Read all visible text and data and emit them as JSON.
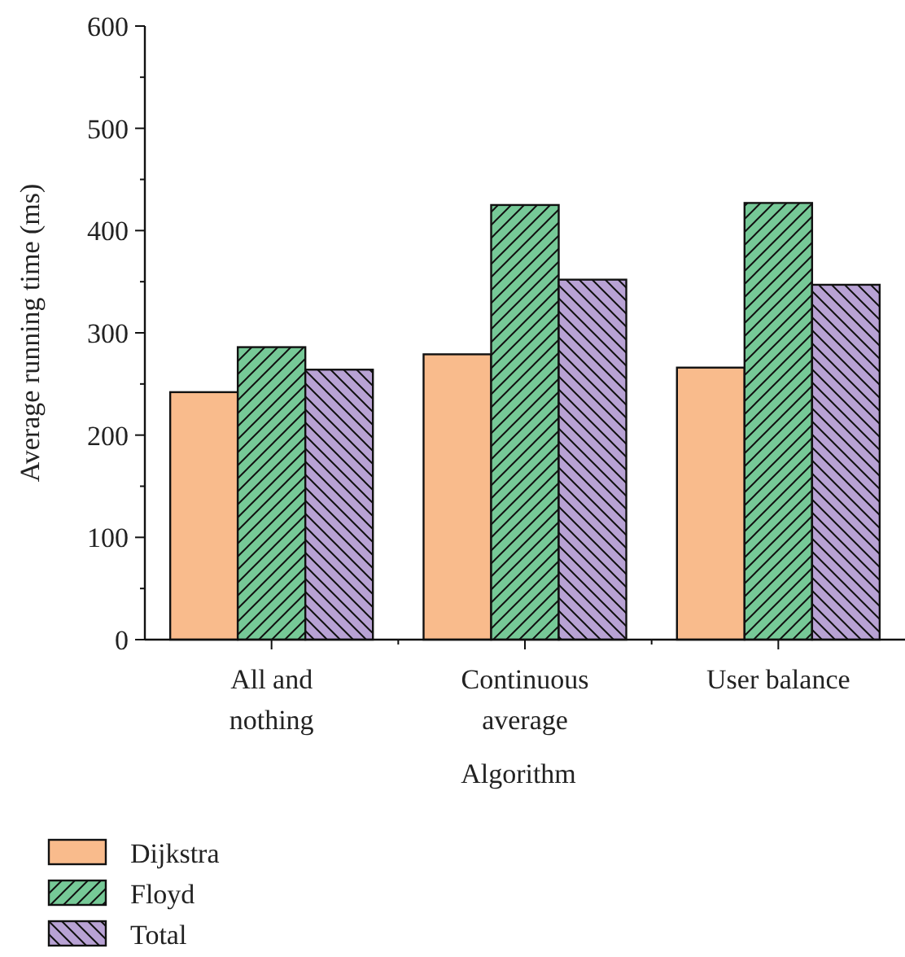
{
  "chart_data": {
    "type": "bar",
    "xlabel": "Algorithm",
    "ylabel": "Average running time (ms)",
    "categories": [
      "All and nothing",
      "Continuous average",
      "User balance"
    ],
    "series": [
      {
        "name": "Dijkstra",
        "color": "#f9bb8c",
        "values": [
          242,
          279,
          266
        ]
      },
      {
        "name": "Floyd",
        "color": "#76c997",
        "values": [
          286,
          425,
          427
        ]
      },
      {
        "name": "Total",
        "color": "#b8a2d4",
        "values": [
          264,
          352,
          347
        ]
      }
    ],
    "ylim": [
      0,
      600
    ],
    "yticks": [
      0,
      {
        "value": 50,
        "label": null
      },
      100,
      {
        "value": 150,
        "label": null
      },
      200,
      {
        "value": 250,
        "label": null
      },
      300,
      {
        "value": 350,
        "label": null
      },
      400,
      {
        "value": 450,
        "label": null
      },
      500,
      {
        "value": 550,
        "label": null
      },
      600
    ],
    "grid": false,
    "legend": "bottom left"
  }
}
